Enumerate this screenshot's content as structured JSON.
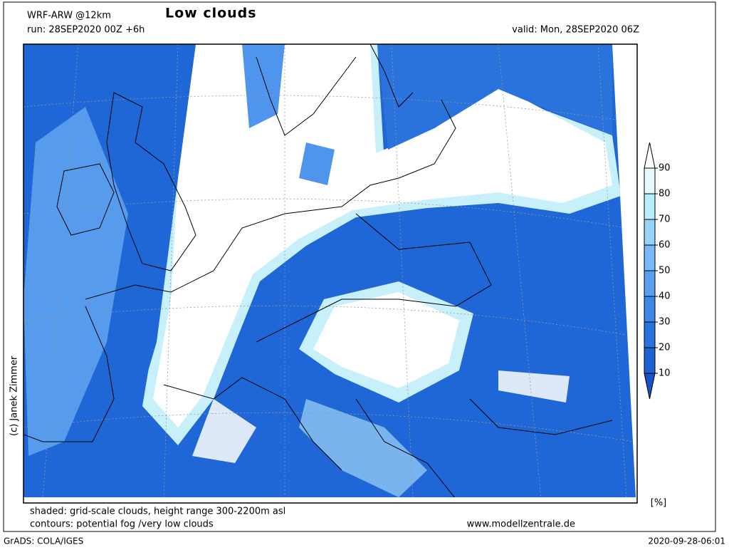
{
  "header": {
    "model": "WRF-ARW @12km",
    "title": "Low clouds",
    "run": "run: 28SEP2020 00Z +6h",
    "valid": "valid: Mon, 28SEP2020 06Z"
  },
  "credit": "(c) Janek Zimmer",
  "colorbar": {
    "labels": [
      90,
      80,
      70,
      60,
      50,
      40,
      30,
      20,
      10
    ],
    "unit": "[%]"
  },
  "footer": {
    "shaded": "shaded: grid-scale clouds, height range 300-2200m asl",
    "contours": "contours: potential fog /very low clouds",
    "website": "www.modellzentrale.de"
  },
  "bottom": {
    "software": "GrADS: COLA/IGES",
    "timestamp": "2020-09-28-06:01"
  }
}
